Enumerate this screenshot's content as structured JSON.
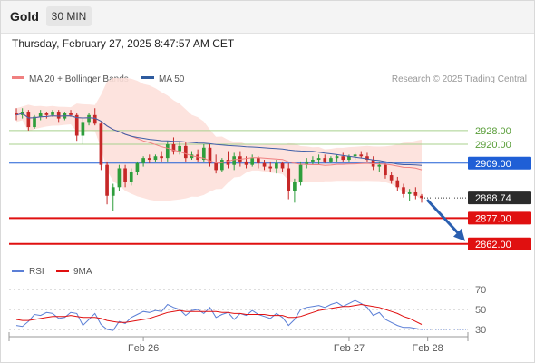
{
  "header": {
    "symbol": "Gold",
    "timeframe": "30 MIN",
    "datetime": "Thursday, February 27, 2025 8:47:57 AM CET"
  },
  "colors": {
    "bullish": "#2e9e3c",
    "bearish": "#c62828",
    "ma20": "#f08080",
    "bollinger_fill": "#fde0da",
    "ma50": "#3f5fa8",
    "blue_level": "#1f5fd6",
    "green_level": "#a8d08d",
    "red_level": "#e01010",
    "rsi": "#5b7fd6",
    "rsi_ma": "#e01010",
    "arrow": "#2a5fb0"
  },
  "chart_data": [
    {
      "type": "candlestick",
      "title": "Gold",
      "legend": [
        {
          "label": "MA 20 + Bollinger Bands",
          "color": "#f08080"
        },
        {
          "label": "MA 50",
          "color": "#2e5b9e"
        }
      ],
      "credit": "Research © 2025 Trading Central",
      "ylim": [
        2855,
        2948
      ],
      "x_ticks": [
        {
          "label": "Feb 26",
          "index": 21
        },
        {
          "label": "Feb 27",
          "index": 55
        },
        {
          "label": "Feb 28",
          "index": 68
        }
      ],
      "levels": [
        {
          "value": 2928.0,
          "label": "2928.00",
          "kind": "resistance"
        },
        {
          "value": 2920.0,
          "label": "2920.00",
          "kind": "resistance"
        },
        {
          "value": 2909.0,
          "label": "2909.00",
          "kind": "pivot"
        },
        {
          "value": 2877.0,
          "label": "2877.00",
          "kind": "support"
        },
        {
          "value": 2862.0,
          "label": "2862.00",
          "kind": "support"
        }
      ],
      "last_price": {
        "value": 2888.74,
        "label": "2888.74"
      },
      "forecast": {
        "direction": "down",
        "target": 2862.0
      },
      "candles": [
        [
          2938,
          2941,
          2934,
          2937
        ],
        [
          2937,
          2941,
          2935,
          2939
        ],
        [
          2939,
          2940,
          2928,
          2930
        ],
        [
          2930,
          2937,
          2929,
          2936
        ],
        [
          2936,
          2940,
          2934,
          2938
        ],
        [
          2938,
          2939,
          2935,
          2937
        ],
        [
          2937,
          2940,
          2936,
          2939
        ],
        [
          2939,
          2940,
          2933,
          2935
        ],
        [
          2935,
          2939,
          2934,
          2938
        ],
        [
          2938,
          2940,
          2936,
          2937
        ],
        [
          2937,
          2938,
          2922,
          2925
        ],
        [
          2925,
          2935,
          2920,
          2933
        ],
        [
          2933,
          2938,
          2931,
          2937
        ],
        [
          2937,
          2941,
          2931,
          2932
        ],
        [
          2932,
          2933,
          2905,
          2908
        ],
        [
          2908,
          2910,
          2885,
          2890
        ],
        [
          2890,
          2897,
          2881,
          2895
        ],
        [
          2895,
          2908,
          2893,
          2906
        ],
        [
          2906,
          2908,
          2895,
          2898
        ],
        [
          2898,
          2906,
          2896,
          2904
        ],
        [
          2904,
          2910,
          2902,
          2909
        ],
        [
          2909,
          2913,
          2907,
          2912
        ],
        [
          2912,
          2914,
          2909,
          2911
        ],
        [
          2911,
          2914,
          2910,
          2913
        ],
        [
          2913,
          2916,
          2910,
          2912
        ],
        [
          2912,
          2922,
          2910,
          2920
        ],
        [
          2920,
          2924,
          2914,
          2916
        ],
        [
          2916,
          2921,
          2914,
          2919
        ],
        [
          2919,
          2921,
          2910,
          2912
        ],
        [
          2912,
          2916,
          2911,
          2914
        ],
        [
          2914,
          2917,
          2910,
          2911
        ],
        [
          2911,
          2920,
          2910,
          2918
        ],
        [
          2918,
          2920,
          2907,
          2909
        ],
        [
          2909,
          2914,
          2903,
          2905
        ],
        [
          2905,
          2912,
          2904,
          2911
        ],
        [
          2911,
          2916,
          2906,
          2908
        ],
        [
          2908,
          2915,
          2905,
          2913
        ],
        [
          2913,
          2916,
          2907,
          2910
        ],
        [
          2910,
          2913,
          2906,
          2908
        ],
        [
          2908,
          2914,
          2907,
          2912
        ],
        [
          2912,
          2913,
          2906,
          2909
        ],
        [
          2909,
          2911,
          2905,
          2907
        ],
        [
          2907,
          2910,
          2904,
          2906
        ],
        [
          2906,
          2911,
          2903,
          2909
        ],
        [
          2909,
          2910,
          2904,
          2906
        ],
        [
          2906,
          2909,
          2888,
          2893
        ],
        [
          2893,
          2900,
          2886,
          2898
        ],
        [
          2898,
          2910,
          2896,
          2908
        ],
        [
          2908,
          2912,
          2906,
          2910
        ],
        [
          2910,
          2913,
          2908,
          2911
        ],
        [
          2911,
          2914,
          2908,
          2912
        ],
        [
          2912,
          2914,
          2909,
          2910
        ],
        [
          2910,
          2913,
          2909,
          2912
        ],
        [
          2912,
          2914,
          2910,
          2913
        ],
        [
          2913,
          2915,
          2910,
          2911
        ],
        [
          2911,
          2914,
          2910,
          2913
        ],
        [
          2913,
          2915,
          2911,
          2914
        ],
        [
          2914,
          2916,
          2912,
          2913
        ],
        [
          2913,
          2915,
          2910,
          2911
        ],
        [
          2911,
          2913,
          2905,
          2907
        ],
        [
          2907,
          2910,
          2904,
          2908
        ],
        [
          2908,
          2909,
          2900,
          2902
        ],
        [
          2902,
          2904,
          2897,
          2899
        ],
        [
          2899,
          2901,
          2893,
          2895
        ],
        [
          2895,
          2897,
          2889,
          2891
        ],
        [
          2891,
          2894,
          2887,
          2892
        ],
        [
          2892,
          2895,
          2888,
          2890
        ],
        [
          2890,
          2891,
          2886,
          2888.74
        ]
      ]
    },
    {
      "type": "line",
      "title": "RSI",
      "legend": [
        {
          "label": "RSI",
          "color": "#5b7fd6"
        },
        {
          "label": "9MA",
          "color": "#e01010"
        }
      ],
      "ylim": [
        20,
        80
      ],
      "y_ticks": [
        "70",
        "50",
        "30"
      ],
      "series": [
        {
          "name": "RSI",
          "values": [
            34,
            33,
            38,
            45,
            44,
            47,
            46,
            41,
            42,
            47,
            46,
            34,
            40,
            46,
            35,
            30,
            29,
            38,
            36,
            42,
            45,
            48,
            47,
            49,
            48,
            55,
            52,
            50,
            44,
            49,
            50,
            46,
            52,
            42,
            45,
            47,
            40,
            46,
            44,
            49,
            45,
            43,
            41,
            46,
            42,
            34,
            40,
            50,
            52,
            53,
            54,
            52,
            55,
            57,
            53,
            56,
            59,
            56,
            52,
            44,
            47,
            40,
            37,
            34,
            32,
            32,
            31,
            30
          ]
        },
        {
          "name": "9MA",
          "values": [
            40,
            39,
            39,
            40,
            41,
            42,
            43,
            43,
            43,
            44,
            43,
            42,
            42,
            42,
            41,
            39,
            38,
            37,
            37,
            38,
            39,
            40,
            41,
            43,
            45,
            47,
            48,
            49,
            48,
            48,
            48,
            48,
            48,
            48,
            47,
            47,
            46,
            46,
            45,
            45,
            45,
            45,
            44,
            44,
            44,
            42,
            42,
            43,
            45,
            47,
            49,
            50,
            51,
            52,
            53,
            53,
            54,
            55,
            54,
            53,
            52,
            50,
            48,
            46,
            43,
            41,
            38,
            35
          ]
        }
      ]
    }
  ],
  "x_axis_ticks": [
    "Feb 26",
    "Feb 27",
    "Feb 28"
  ]
}
